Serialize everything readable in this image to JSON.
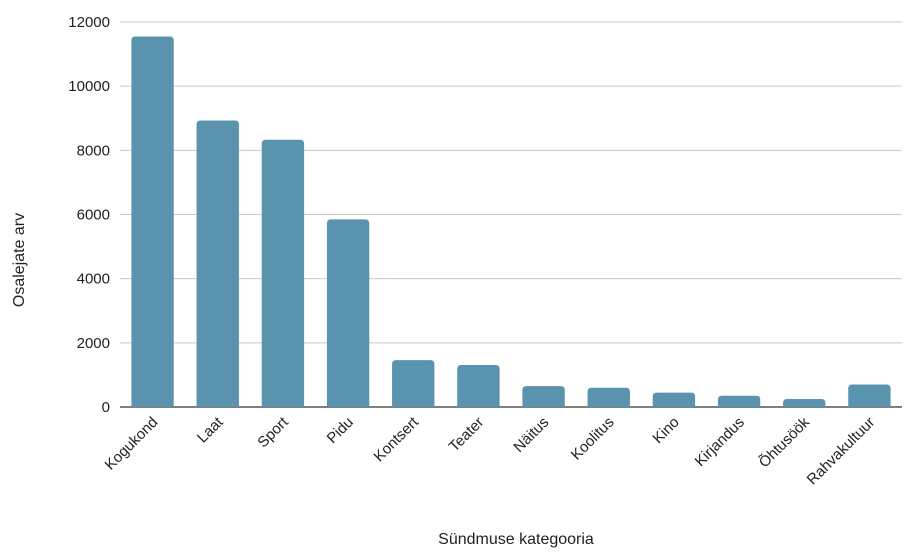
{
  "chart_data": {
    "type": "bar",
    "title": "",
    "xlabel": "Sündmuse kategooria",
    "ylabel": "Osalejate arv",
    "categories": [
      "Kogukond",
      "Laat",
      "Sport",
      "Pidu",
      "Kontsert",
      "Teater",
      "Näitus",
      "Koolitus",
      "Kino",
      "Kirjandus",
      "Õhtusöök",
      "Rahvakultuur"
    ],
    "values": [
      11550,
      8930,
      8330,
      5850,
      1460,
      1310,
      650,
      600,
      450,
      350,
      250,
      700
    ],
    "ylim": [
      0,
      12000
    ],
    "yticks": [
      0,
      2000,
      4000,
      6000,
      8000,
      10000,
      12000
    ],
    "grid": true,
    "bar_color": "#5a93ad"
  }
}
